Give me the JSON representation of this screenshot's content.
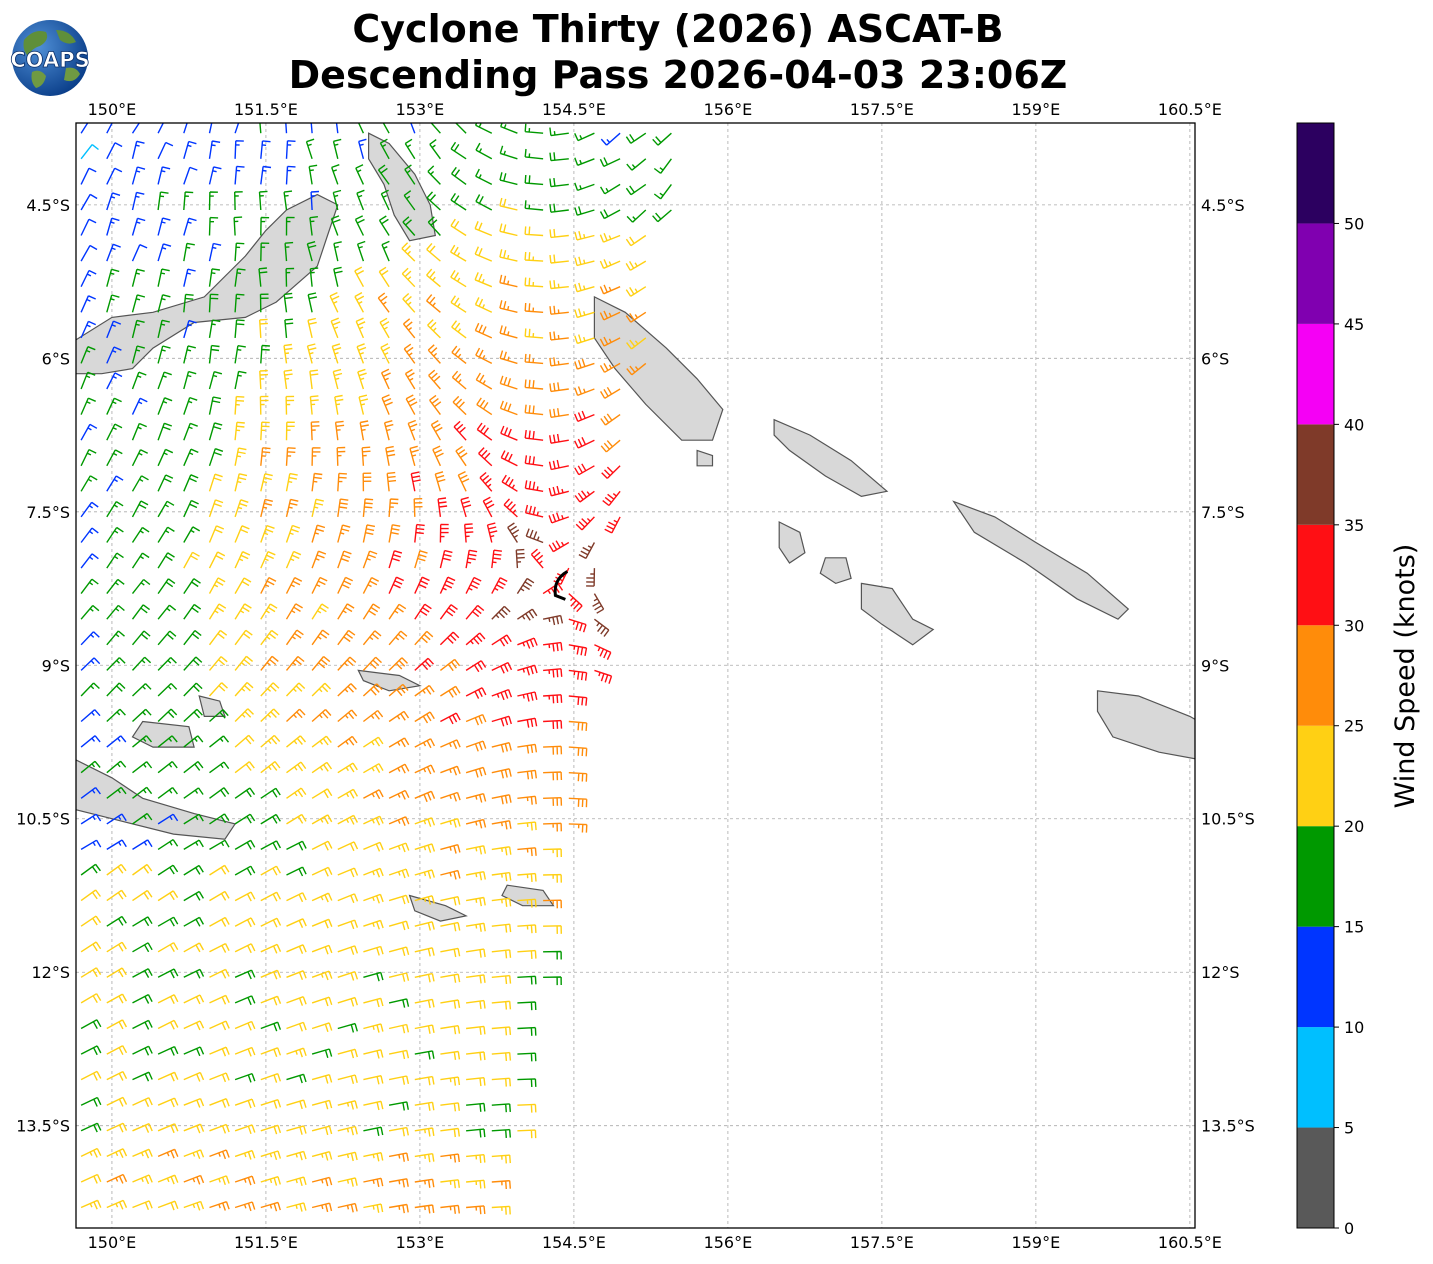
{
  "header": {
    "title_line1": "Cyclone Thirty (2026) ASCAT-B",
    "title_line2": "Descending Pass 2026-04-03 23:06Z",
    "logo_text": "COAPS"
  },
  "map": {
    "lon_ticks": [
      "150°E",
      "151.5°E",
      "153°E",
      "154.5°E",
      "156°E",
      "157.5°E",
      "159°E",
      "160.5°E"
    ],
    "lat_ticks": [
      "4.5°S",
      "6°S",
      "7.5°S",
      "9°S",
      "10.5°S",
      "12°S",
      "13.5°S"
    ],
    "lon_range": [
      149.65,
      160.55
    ],
    "lat_range": [
      -3.7,
      -14.5
    ],
    "gridlines": true,
    "land_color": "#d8d8d8",
    "coast_color": "#555555"
  },
  "colorbar": {
    "label": "Wind Speed (knots)",
    "ticks": [
      "0",
      "5",
      "10",
      "15",
      "20",
      "25",
      "30",
      "35",
      "40",
      "45",
      "50"
    ],
    "bins": [
      {
        "min": 0,
        "max": 5,
        "color": "#595959"
      },
      {
        "min": 5,
        "max": 10,
        "color": "#00bfff"
      },
      {
        "min": 10,
        "max": 15,
        "color": "#0035ff"
      },
      {
        "min": 15,
        "max": 20,
        "color": "#009900"
      },
      {
        "min": 20,
        "max": 25,
        "color": "#ffd014"
      },
      {
        "min": 25,
        "max": 30,
        "color": "#ff8c0a"
      },
      {
        "min": 30,
        "max": 35,
        "color": "#ff0f14"
      },
      {
        "min": 35,
        "max": 40,
        "color": "#7f3a29"
      },
      {
        "min": 40,
        "max": 45,
        "color": "#f500f5"
      },
      {
        "min": 45,
        "max": 50,
        "color": "#8000b0"
      },
      {
        "min": 50,
        "max": 55,
        "color": "#2c0060"
      }
    ]
  },
  "wind_field": {
    "center_lon": 154.3,
    "center_lat": -8.2,
    "swath_edge_lon_north": 155.6,
    "swath_edge_lon_south": 153.8
  }
}
